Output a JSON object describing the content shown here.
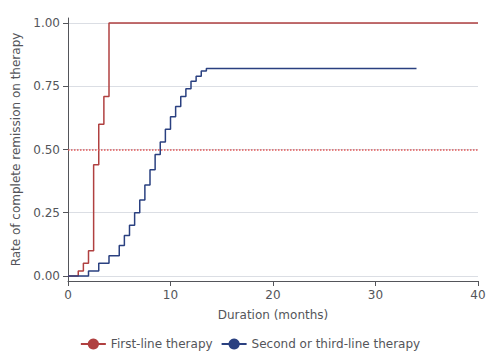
{
  "chart_data": {
    "type": "step",
    "xlabel": "Duration (months)",
    "ylabel": "Rate of complete remission on therapy",
    "xlim": [
      0,
      40
    ],
    "ylim": [
      -0.02,
      1.02
    ],
    "xticks": [
      0,
      10,
      20,
      30,
      40
    ],
    "yticks": [
      {
        "value": 0,
        "label": "0.00"
      },
      0.25,
      {
        "value": 0.5,
        "label": "0.50"
      },
      0.75,
      {
        "value": 1,
        "label": "1.00"
      }
    ],
    "grid": true,
    "legend": "bottom",
    "series": [
      {
        "name": "First-line therapy",
        "color": "#b04040",
        "x": [
          0,
          0.5,
          1.0,
          1.5,
          2.0,
          2.5,
          3.0,
          3.5,
          4.0,
          4.5,
          5.0,
          5.5,
          40
        ],
        "values": [
          0.0,
          0.0,
          0.02,
          0.05,
          0.1,
          0.44,
          0.6,
          0.71,
          1.0,
          1.0,
          1.0,
          1.0,
          1.0
        ]
      },
      {
        "name": "Second or third-line therapy",
        "color": "#2a4080",
        "x": [
          0,
          1.5,
          2.0,
          3.0,
          4.0,
          5.0,
          5.5,
          6.0,
          6.5,
          7.0,
          7.5,
          8.0,
          8.5,
          9.0,
          9.5,
          10.0,
          10.5,
          11.0,
          11.5,
          12.0,
          12.5,
          13.0,
          13.5,
          14.0,
          34.0
        ],
        "values": [
          0.0,
          0.0,
          0.02,
          0.05,
          0.08,
          0.12,
          0.16,
          0.2,
          0.25,
          0.3,
          0.36,
          0.42,
          0.48,
          0.53,
          0.58,
          0.63,
          0.67,
          0.71,
          0.74,
          0.77,
          0.79,
          0.81,
          0.82,
          0.82,
          0.82
        ]
      }
    ],
    "reference_lines": [
      {
        "y": 0.5,
        "color": "#e05858",
        "line_style": "dotted"
      }
    ]
  }
}
